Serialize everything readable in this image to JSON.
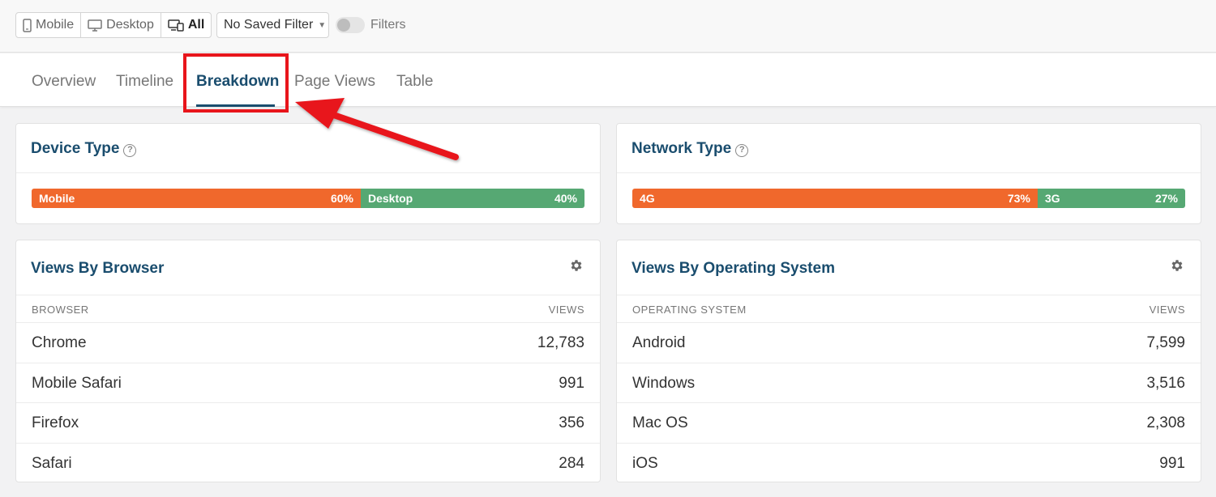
{
  "device_filter": {
    "options": [
      {
        "label": "Mobile",
        "icon": "mobile-icon"
      },
      {
        "label": "Desktop",
        "icon": "desktop-icon"
      },
      {
        "label": "All",
        "icon": "devices-icon"
      }
    ],
    "selected": "All"
  },
  "saved_filter": {
    "value": "No Saved Filter"
  },
  "filters_toggle": {
    "label": "Filters",
    "on": false
  },
  "tabs": [
    {
      "label": "Overview"
    },
    {
      "label": "Timeline"
    },
    {
      "label": "Breakdown"
    },
    {
      "label": "Page Views"
    },
    {
      "label": "Table"
    }
  ],
  "active_tab": "Breakdown",
  "annotation": {
    "color": "#e8151b"
  },
  "device_type": {
    "title": "Device Type",
    "segments": [
      {
        "label": "Mobile",
        "percent": "60%",
        "fraction": 0.6,
        "color": "#f0682c"
      },
      {
        "label": "Desktop",
        "percent": "40%",
        "fraction": 0.4,
        "color": "#56a873"
      }
    ]
  },
  "network_type": {
    "title": "Network Type",
    "segments": [
      {
        "label": "4G",
        "percent": "73%",
        "fraction": 0.73,
        "color": "#f0682c"
      },
      {
        "label": "3G",
        "percent": "27%",
        "fraction": 0.27,
        "color": "#56a873"
      }
    ]
  },
  "browsers": {
    "title": "Views By Browser",
    "col_name": "BROWSER",
    "col_value": "VIEWS",
    "rows": [
      {
        "name": "Chrome",
        "views": "12,783"
      },
      {
        "name": "Mobile Safari",
        "views": "991"
      },
      {
        "name": "Firefox",
        "views": "356"
      },
      {
        "name": "Safari",
        "views": "284"
      }
    ]
  },
  "operating_systems": {
    "title": "Views By Operating System",
    "col_name": "OPERATING SYSTEM",
    "col_value": "VIEWS",
    "rows": [
      {
        "name": "Android",
        "views": "7,599"
      },
      {
        "name": "Windows",
        "views": "3,516"
      },
      {
        "name": "Mac OS",
        "views": "2,308"
      },
      {
        "name": "iOS",
        "views": "991"
      }
    ]
  },
  "colors": {
    "accent": "#1a4d6e",
    "orange": "#f0682c",
    "green": "#56a873"
  }
}
